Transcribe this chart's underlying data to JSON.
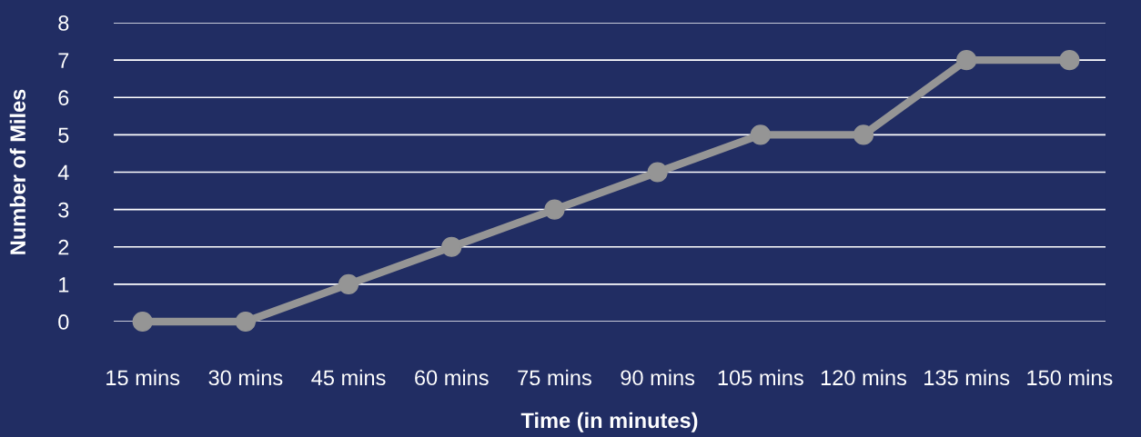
{
  "chart_data": {
    "type": "line",
    "xlabel": "Time (in minutes)",
    "ylabel": "Number of Miles",
    "categories": [
      "15 mins",
      "30 mins",
      "45 mins",
      "60 mins",
      "75 mins",
      "90 mins",
      "105 mins",
      "120 mins",
      "135 mins",
      "150 mins"
    ],
    "series": [
      {
        "color": "#959595",
        "values": [
          0,
          0,
          1,
          2,
          3,
          4,
          5,
          5,
          7,
          7
        ]
      }
    ],
    "ylim": [
      0,
      8
    ],
    "yticks": [
      0,
      1,
      2,
      3,
      4,
      5,
      6,
      7,
      8
    ],
    "grid": "y",
    "marker": "circle",
    "line_style": "solid"
  }
}
